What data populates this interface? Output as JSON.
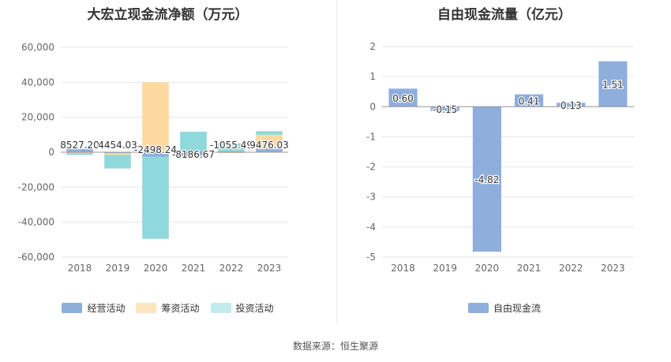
{
  "chart_data": [
    {
      "type": "bar",
      "stacked": true,
      "title": "大宏立现金流净额（万元）",
      "categories": [
        "2018",
        "2019",
        "2020",
        "2021",
        "2022",
        "2023"
      ],
      "series": [
        {
          "name": "经营活动",
          "color": "#8eaedc",
          "values": [
            2000,
            -600,
            -2500,
            -2300,
            500,
            2000
          ]
        },
        {
          "name": "筹资活动",
          "color": "#fdd9a0",
          "values": [
            -500,
            -1000,
            40000,
            -1000,
            -100,
            8000
          ]
        },
        {
          "name": "投资活动",
          "color": "#8fd8db",
          "values": [
            -1000,
            -7700,
            -47000,
            11700,
            4500,
            2000
          ]
        }
      ],
      "data_labels": [
        "8527.20",
        "4454.03",
        "-2498.24",
        "-8186.67",
        "-1055.49",
        "9476.03"
      ],
      "ylim": [
        -60000,
        60000
      ],
      "yticks": [
        60000,
        40000,
        20000,
        0,
        -20000,
        -40000,
        -60000
      ],
      "ytick_labels": [
        "60,000",
        "40,000",
        "20,000",
        "0",
        "-20,000",
        "-40,000",
        "-60,000"
      ],
      "xlabel": "",
      "ylabel": "",
      "grid": true,
      "legend": "bottom"
    },
    {
      "type": "bar",
      "title": "自由现金流量（亿元）",
      "categories": [
        "2018",
        "2019",
        "2020",
        "2021",
        "2022",
        "2023"
      ],
      "series": [
        {
          "name": "自由现金流",
          "color": "#8eaedc",
          "values": [
            0.6,
            -0.15,
            -4.82,
            0.41,
            0.13,
            1.51
          ]
        }
      ],
      "data_labels": [
        "0.60",
        "-0.15",
        "-4.82",
        "0.41",
        "0.13",
        "1.51"
      ],
      "ylim": [
        -5,
        2
      ],
      "yticks": [
        2,
        1,
        0,
        -1,
        -2,
        -3,
        -4,
        -5
      ],
      "ytick_labels": [
        "2",
        "1",
        "0",
        "-1",
        "-2",
        "-3",
        "-4",
        "-5"
      ],
      "xlabel": "",
      "ylabel": "",
      "grid": true,
      "legend": "bottom"
    }
  ],
  "footer": {
    "source": "数据来源：恒生聚源"
  }
}
